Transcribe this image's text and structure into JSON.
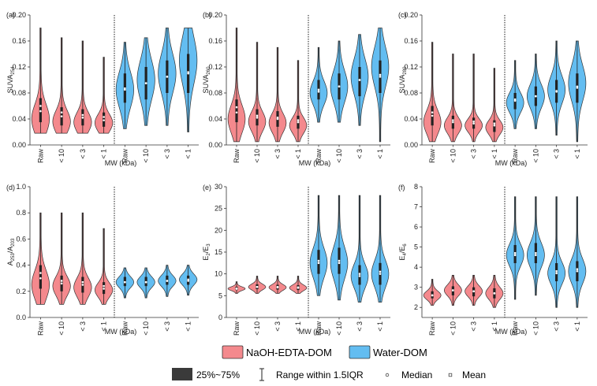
{
  "chart_data": [
    {
      "panel": "(a)",
      "type": "violin",
      "ylabel": "SUVA",
      "ylabel_sub": "254",
      "xlabel": "MW (kDa)",
      "categories": [
        "Raw",
        "< 10",
        "< 3",
        "< 1",
        "Raw",
        "< 10",
        "< 3",
        "< 1"
      ],
      "ylim": [
        0,
        0.2
      ],
      "yticks": [
        0.0,
        0.04,
        0.08,
        0.12,
        0.16,
        0.2
      ],
      "ytick_labels": [
        "0.00",
        "0.04",
        "0.08",
        "0.12",
        "0.16",
        "0.20"
      ],
      "series": [
        {
          "name": "NaOH-EDTA-DOM",
          "violins": [
            {
              "min": 0.018,
              "max": 0.18,
              "q1": 0.035,
              "q3": 0.072,
              "median": 0.052,
              "mean": 0.06,
              "mode": 0.04
            },
            {
              "min": 0.018,
              "max": 0.165,
              "q1": 0.03,
              "q3": 0.058,
              "median": 0.044,
              "mean": 0.05,
              "mode": 0.036
            },
            {
              "min": 0.018,
              "max": 0.16,
              "q1": 0.03,
              "q3": 0.055,
              "median": 0.042,
              "mean": 0.046,
              "mode": 0.035
            },
            {
              "min": 0.018,
              "max": 0.135,
              "q1": 0.028,
              "q3": 0.05,
              "median": 0.038,
              "mean": 0.043,
              "mode": 0.034
            }
          ]
        },
        {
          "name": "Water-DOM",
          "violins": [
            {
              "min": 0.025,
              "max": 0.158,
              "q1": 0.065,
              "q3": 0.11,
              "median": 0.085,
              "mean": 0.087,
              "mode": 0.085
            },
            {
              "min": 0.03,
              "max": 0.165,
              "q1": 0.07,
              "q3": 0.12,
              "median": 0.095,
              "mean": 0.095,
              "mode": 0.1
            },
            {
              "min": 0.03,
              "max": 0.18,
              "q1": 0.08,
              "q3": 0.13,
              "median": 0.105,
              "mean": 0.105,
              "mode": 0.11
            },
            {
              "min": 0.02,
              "max": 0.18,
              "q1": 0.08,
              "q3": 0.14,
              "median": 0.11,
              "mean": 0.112,
              "mode": 0.13
            }
          ]
        }
      ]
    },
    {
      "panel": "(b)",
      "type": "violin",
      "ylabel": "SUVA",
      "ylabel_sub": "260",
      "xlabel": "MW (kDa)",
      "categories": [
        "Raw",
        "< 10",
        "< 3",
        "< 1",
        "Raw",
        "< 10",
        "< 3",
        "< 1"
      ],
      "ylim": [
        0,
        0.2
      ],
      "yticks": [
        0.0,
        0.04,
        0.08,
        0.12,
        0.16,
        0.2
      ],
      "ytick_labels": [
        "0.00",
        "0.04",
        "0.08",
        "0.12",
        "0.16",
        "0.20"
      ],
      "series": [
        {
          "name": "NaOH-EDTA-DOM",
          "violins": [
            {
              "min": 0.005,
              "max": 0.18,
              "q1": 0.035,
              "q3": 0.07,
              "median": 0.05,
              "mean": 0.058,
              "mode": 0.04
            },
            {
              "min": 0.005,
              "max": 0.158,
              "q1": 0.03,
              "q3": 0.055,
              "median": 0.042,
              "mean": 0.045,
              "mode": 0.036
            },
            {
              "min": 0.005,
              "max": 0.15,
              "q1": 0.028,
              "q3": 0.052,
              "median": 0.04,
              "mean": 0.042,
              "mode": 0.034
            },
            {
              "min": 0.005,
              "max": 0.13,
              "q1": 0.025,
              "q3": 0.045,
              "median": 0.035,
              "mean": 0.038,
              "mode": 0.03
            }
          ]
        },
        {
          "name": "Water-DOM",
          "violins": [
            {
              "min": 0.035,
              "max": 0.15,
              "q1": 0.07,
              "q3": 0.1,
              "median": 0.082,
              "mean": 0.085,
              "mode": 0.08
            },
            {
              "min": 0.035,
              "max": 0.16,
              "q1": 0.07,
              "q3": 0.11,
              "median": 0.09,
              "mean": 0.09,
              "mode": 0.09
            },
            {
              "min": 0.03,
              "max": 0.17,
              "q1": 0.075,
              "q3": 0.12,
              "median": 0.1,
              "mean": 0.1,
              "mode": 0.105
            },
            {
              "min": 0.005,
              "max": 0.18,
              "q1": 0.08,
              "q3": 0.13,
              "median": 0.108,
              "mean": 0.105,
              "mode": 0.12
            }
          ]
        }
      ]
    },
    {
      "panel": "(c)",
      "type": "violin",
      "ylabel": "SUVA",
      "ylabel_sub": "280",
      "xlabel": "MW (kDa)",
      "categories": [
        "Raw",
        "< 10",
        "< 3",
        "< 1",
        "Raw",
        "< 10",
        "< 3",
        "< 1"
      ],
      "ylim": [
        0,
        0.2
      ],
      "yticks": [
        0.0,
        0.04,
        0.08,
        0.12,
        0.16,
        0.2
      ],
      "ytick_labels": [
        "0.00",
        "0.04",
        "0.08",
        "0.12",
        "0.16",
        "0.20"
      ],
      "series": [
        {
          "name": "NaOH-EDTA-DOM",
          "violins": [
            {
              "min": 0.005,
              "max": 0.158,
              "q1": 0.03,
              "q3": 0.06,
              "median": 0.045,
              "mean": 0.05,
              "mode": 0.035
            },
            {
              "min": 0.005,
              "max": 0.14,
              "q1": 0.025,
              "q3": 0.045,
              "median": 0.035,
              "mean": 0.038,
              "mode": 0.03
            },
            {
              "min": 0.005,
              "max": 0.14,
              "q1": 0.025,
              "q3": 0.042,
              "median": 0.033,
              "mean": 0.036,
              "mode": 0.03
            },
            {
              "min": 0.005,
              "max": 0.118,
              "q1": 0.02,
              "q3": 0.038,
              "median": 0.03,
              "mean": 0.033,
              "mode": 0.027
            }
          ]
        },
        {
          "name": "Water-DOM",
          "violins": [
            {
              "min": 0.025,
              "max": 0.13,
              "q1": 0.055,
              "q3": 0.08,
              "median": 0.068,
              "mean": 0.07,
              "mode": 0.065
            },
            {
              "min": 0.025,
              "max": 0.14,
              "q1": 0.06,
              "q3": 0.09,
              "median": 0.075,
              "mean": 0.075,
              "mode": 0.075
            },
            {
              "min": 0.015,
              "max": 0.16,
              "q1": 0.065,
              "q3": 0.1,
              "median": 0.082,
              "mean": 0.083,
              "mode": 0.085
            },
            {
              "min": 0.005,
              "max": 0.16,
              "q1": 0.065,
              "q3": 0.11,
              "median": 0.09,
              "mean": 0.088,
              "mode": 0.095
            }
          ]
        }
      ]
    },
    {
      "panel": "(d)",
      "type": "violin",
      "ylabel": "A",
      "ylabel_sub": "253",
      "ylabel_tail": "/A",
      "ylabel_sub2": "203",
      "xlabel": "MW (kDa)",
      "categories": [
        "Raw",
        "< 10",
        "< 3",
        "< 1",
        "Raw",
        "< 10",
        "< 3",
        "< 1"
      ],
      "ylim": [
        0,
        1.0
      ],
      "yticks": [
        0.0,
        0.2,
        0.4,
        0.6,
        0.8,
        1.0
      ],
      "ytick_labels": [
        "0.0",
        "0.2",
        "0.4",
        "0.6",
        "0.8",
        "1.0"
      ],
      "series": [
        {
          "name": "NaOH-EDTA-DOM",
          "violins": [
            {
              "min": 0.1,
              "max": 0.8,
              "q1": 0.22,
              "q3": 0.4,
              "median": 0.3,
              "mean": 0.34,
              "mode": 0.25
            },
            {
              "min": 0.1,
              "max": 0.8,
              "q1": 0.2,
              "q3": 0.32,
              "median": 0.26,
              "mean": 0.28,
              "mode": 0.24
            },
            {
              "min": 0.1,
              "max": 0.8,
              "q1": 0.19,
              "q3": 0.31,
              "median": 0.25,
              "mean": 0.27,
              "mode": 0.23
            },
            {
              "min": 0.1,
              "max": 0.68,
              "q1": 0.18,
              "q3": 0.27,
              "median": 0.22,
              "mean": 0.24,
              "mode": 0.21
            }
          ]
        },
        {
          "name": "Water-DOM",
          "violins": [
            {
              "min": 0.15,
              "max": 0.38,
              "q1": 0.24,
              "q3": 0.31,
              "median": 0.27,
              "mean": 0.27,
              "mode": 0.27
            },
            {
              "min": 0.15,
              "max": 0.38,
              "q1": 0.24,
              "q3": 0.31,
              "median": 0.27,
              "mean": 0.27,
              "mode": 0.27
            },
            {
              "min": 0.16,
              "max": 0.4,
              "q1": 0.25,
              "q3": 0.32,
              "median": 0.28,
              "mean": 0.28,
              "mode": 0.28
            },
            {
              "min": 0.17,
              "max": 0.4,
              "q1": 0.25,
              "q3": 0.32,
              "median": 0.28,
              "mean": 0.29,
              "mode": 0.29
            }
          ]
        }
      ]
    },
    {
      "panel": "(e)",
      "type": "violin",
      "ylabel": "E",
      "ylabel_sub": "2",
      "ylabel_tail": "/E",
      "ylabel_sub2": "3",
      "xlabel": "MW (kDa)",
      "categories": [
        "Raw",
        "< 10",
        "< 3",
        "< 1",
        "Raw",
        "< 10",
        "< 3",
        "< 1"
      ],
      "ylim": [
        0,
        30
      ],
      "yticks": [
        0,
        5,
        10,
        15,
        20,
        25,
        30
      ],
      "ytick_labels": [
        "0",
        "5",
        "10",
        "15",
        "20",
        "25",
        "30"
      ],
      "series": [
        {
          "name": "NaOH-EDTA-DOM",
          "violins": [
            {
              "min": 5.5,
              "max": 8.2,
              "q1": 6.3,
              "q3": 7.0,
              "median": 6.6,
              "mean": 6.6,
              "mode": 6.6
            },
            {
              "min": 5.5,
              "max": 9.5,
              "q1": 6.5,
              "q3": 7.6,
              "median": 7.0,
              "mean": 7.0,
              "mode": 7.0
            },
            {
              "min": 5.5,
              "max": 9.5,
              "q1": 6.4,
              "q3": 7.5,
              "median": 6.9,
              "mean": 7.0,
              "mode": 6.9
            },
            {
              "min": 5.5,
              "max": 9.5,
              "q1": 6.3,
              "q3": 7.4,
              "median": 6.8,
              "mean": 6.9,
              "mode": 6.8
            }
          ]
        },
        {
          "name": "Water-DOM",
          "violins": [
            {
              "min": 5.0,
              "max": 28.0,
              "q1": 10.0,
              "q3": 15.5,
              "median": 12.5,
              "mean": 13.0,
              "mode": 12.5
            },
            {
              "min": 4.0,
              "max": 28.0,
              "q1": 10.0,
              "q3": 16.0,
              "median": 12.5,
              "mean": 13.0,
              "mode": 12.5
            },
            {
              "min": 3.5,
              "max": 28.0,
              "q1": 7.5,
              "q3": 12.0,
              "median": 9.5,
              "mean": 10.0,
              "mode": 9.5
            },
            {
              "min": 3.5,
              "max": 28.0,
              "q1": 7.5,
              "q3": 12.5,
              "median": 10.0,
              "mean": 10.5,
              "mode": 10.0
            }
          ]
        }
      ]
    },
    {
      "panel": "(f)",
      "type": "violin",
      "ylabel": "E",
      "ylabel_sub": "4",
      "ylabel_tail": "/E",
      "ylabel_sub2": "6",
      "xlabel": "MW (kDa)",
      "categories": [
        "Raw",
        "< 10",
        "< 3",
        "< 1",
        "Raw",
        "< 10",
        "< 3",
        "< 1"
      ],
      "ylim": [
        1.5,
        8
      ],
      "yticks": [
        2,
        3,
        4,
        5,
        6,
        7,
        8
      ],
      "ytick_labels": [
        "2",
        "3",
        "4",
        "5",
        "6",
        "7",
        "8"
      ],
      "series": [
        {
          "name": "NaOH-EDTA-DOM",
          "violins": [
            {
              "min": 2.1,
              "max": 3.4,
              "q1": 2.45,
              "q3": 2.8,
              "median": 2.6,
              "mean": 2.6,
              "mode": 2.6
            },
            {
              "min": 2.1,
              "max": 3.6,
              "q1": 2.6,
              "q3": 3.05,
              "median": 2.85,
              "mean": 2.85,
              "mode": 2.85
            },
            {
              "min": 2.1,
              "max": 3.6,
              "q1": 2.55,
              "q3": 3.0,
              "median": 2.8,
              "mean": 2.8,
              "mode": 2.8
            },
            {
              "min": 2.0,
              "max": 3.6,
              "q1": 2.45,
              "q3": 2.95,
              "median": 2.7,
              "mean": 2.7,
              "mode": 2.7
            }
          ]
        },
        {
          "name": "Water-DOM",
          "violins": [
            {
              "min": 2.4,
              "max": 7.5,
              "q1": 4.2,
              "q3": 5.1,
              "median": 4.6,
              "mean": 4.7,
              "mode": 4.6
            },
            {
              "min": 2.6,
              "max": 7.5,
              "q1": 4.2,
              "q3": 5.2,
              "median": 4.6,
              "mean": 4.7,
              "mode": 4.6
            },
            {
              "min": 2.0,
              "max": 7.5,
              "q1": 3.3,
              "q3": 4.2,
              "median": 3.7,
              "mean": 3.8,
              "mode": 3.7
            },
            {
              "min": 2.0,
              "max": 7.5,
              "q1": 3.3,
              "q3": 4.3,
              "median": 3.8,
              "mean": 3.9,
              "mode": 3.8
            }
          ]
        }
      ]
    }
  ],
  "legend": {
    "series": [
      {
        "label": "NaOH-EDTA-DOM",
        "color": "#f4898d"
      },
      {
        "label": "Water-DOM",
        "color": "#63bdf1"
      }
    ],
    "items": [
      {
        "label": "25%~75%",
        "icon": "iqr-box-icon"
      },
      {
        "label": "Range within 1.5IQR",
        "icon": "range-bar-icon"
      },
      {
        "label": "Median",
        "icon": "median-dot-icon"
      },
      {
        "label": "Mean",
        "icon": "mean-dot-icon"
      }
    ]
  },
  "colors": {
    "naoh": "#f4898d",
    "water": "#63bdf1",
    "stroke": "#333333",
    "box": "#222222"
  }
}
